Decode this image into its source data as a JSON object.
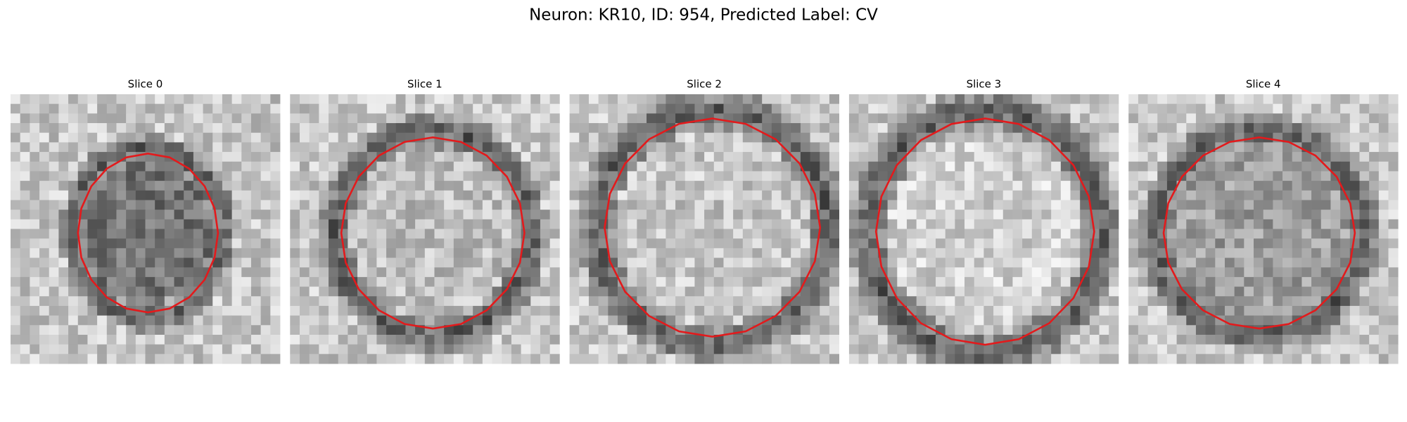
{
  "header": {
    "title": "Neuron: KR10, ID: 954, Predicted Label: CV"
  },
  "panels": [
    {
      "title": "Slice 0"
    },
    {
      "title": "Slice 1"
    },
    {
      "title": "Slice 2"
    },
    {
      "title": "Slice 3"
    },
    {
      "title": "Slice 4"
    }
  ]
}
